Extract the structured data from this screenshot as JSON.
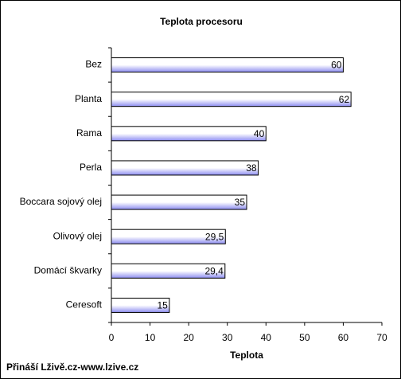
{
  "chart_data": {
    "type": "hbar",
    "title": "Teplota procesoru",
    "x_label": "Teplota",
    "categories": [
      "Bez",
      "Planta",
      "Rama",
      "Perla",
      "Boccara sojový olej",
      "Olivový olej",
      "Domácí škvarky",
      "Ceresoft"
    ],
    "values": [
      60,
      62,
      40,
      38,
      35,
      29.5,
      29.4,
      15
    ],
    "value_labels": [
      "60",
      "62",
      "40",
      "38",
      "35",
      "29,5",
      "29,4",
      "15"
    ],
    "color": "#8c8cf0",
    "xlim": [
      0,
      70
    ],
    "xticks": [
      0,
      10,
      20,
      30,
      40,
      50,
      60,
      70
    ],
    "grid": false
  },
  "footer": "Přináší Lživě.cz-www.lzive.cz"
}
